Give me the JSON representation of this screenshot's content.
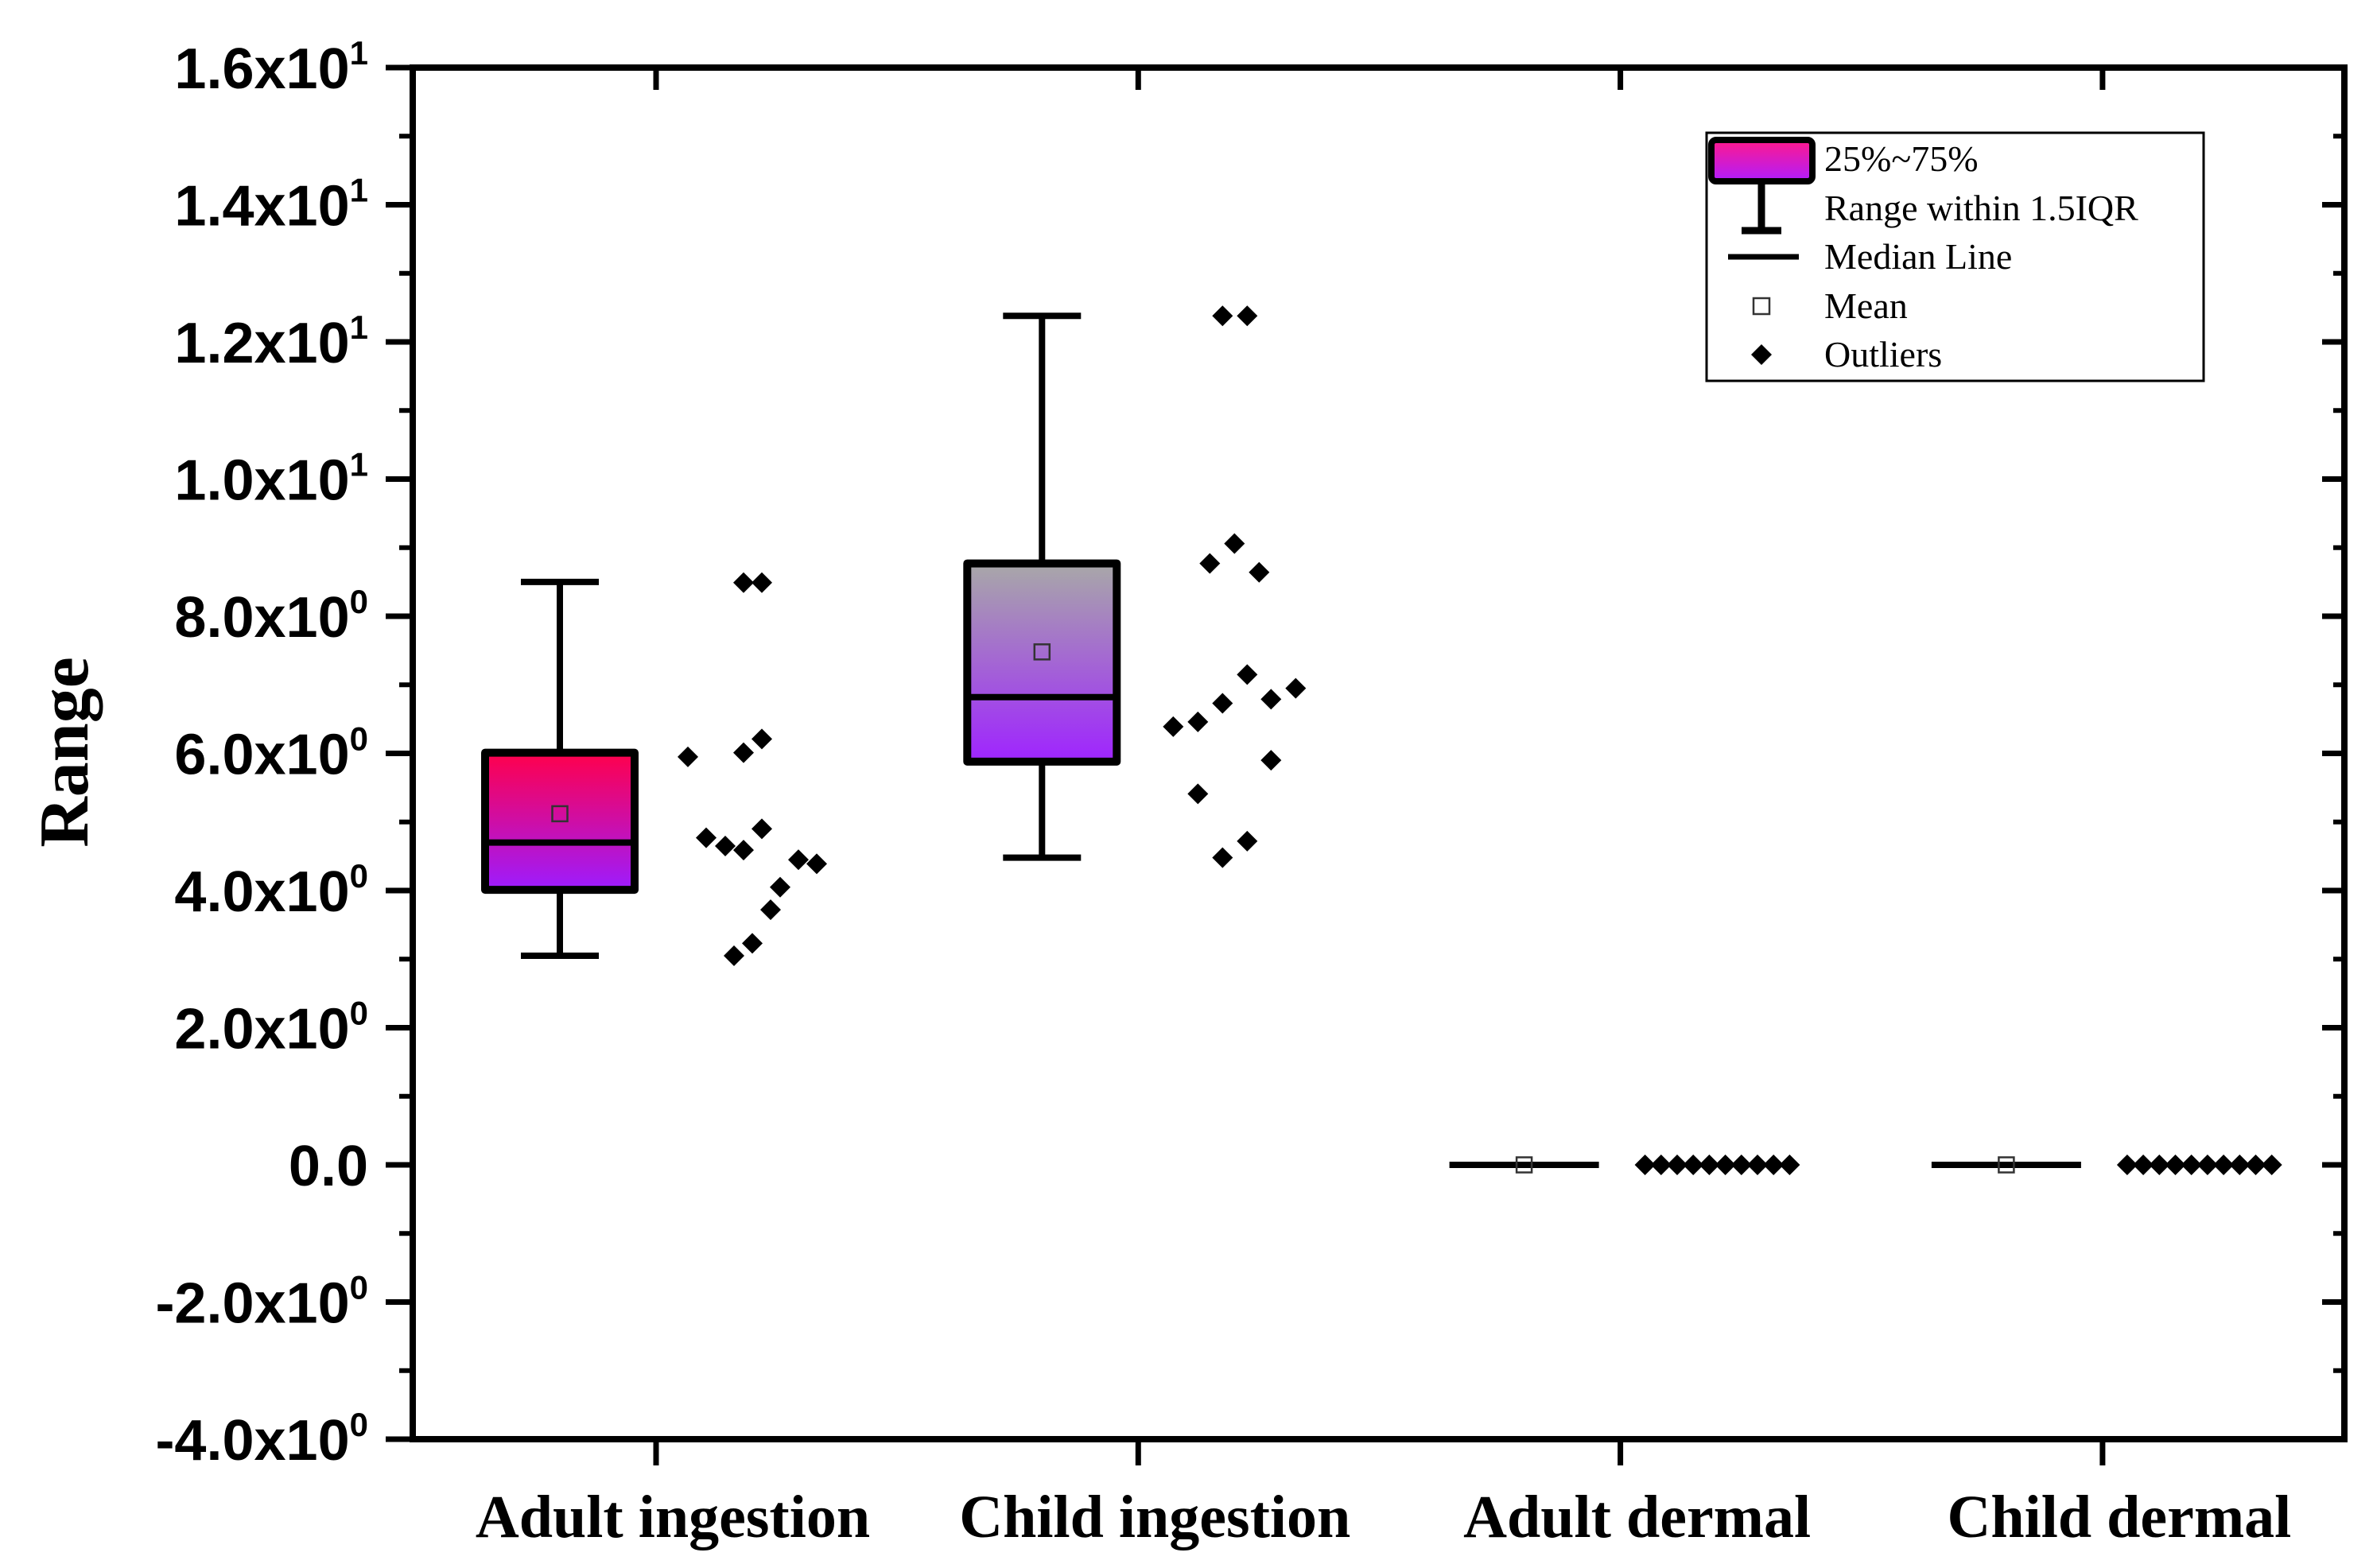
{
  "chart_data": {
    "type": "box",
    "title": "",
    "xlabel": "",
    "ylabel": "Range",
    "ylim": [
      -4,
      16
    ],
    "yticks": [
      {
        "value": 16,
        "mantissa": "1.6x10",
        "exp": "1"
      },
      {
        "value": 14,
        "mantissa": "1.4x10",
        "exp": "1"
      },
      {
        "value": 12,
        "mantissa": "1.2x10",
        "exp": "1"
      },
      {
        "value": 10,
        "mantissa": "1.0x10",
        "exp": "1"
      },
      {
        "value": 8,
        "mantissa": "8.0x10",
        "exp": "0"
      },
      {
        "value": 6,
        "mantissa": "6.0x10",
        "exp": "0"
      },
      {
        "value": 4,
        "mantissa": "4.0x10",
        "exp": "0"
      },
      {
        "value": 2,
        "mantissa": "2.0x10",
        "exp": "0"
      },
      {
        "value": 0,
        "mantissa": "0.0",
        "exp": ""
      },
      {
        "value": -2,
        "mantissa": "-2.0x10",
        "exp": "0"
      },
      {
        "value": -4,
        "mantissa": "-4.0x10",
        "exp": "0"
      }
    ],
    "categories": [
      "Adult ingestion",
      "Child ingestion",
      "Adult dermal",
      "Child dermal"
    ],
    "series": [
      {
        "name": "Adult ingestion",
        "q1": 4.01,
        "q3": 6.01,
        "median": 4.7,
        "mean": 5.12,
        "whisker_low": 3.05,
        "whisker_high": 8.5,
        "fill_top": "#ff004c",
        "fill_bottom": "#9d1cff",
        "points": [
          5.95,
          4.77,
          4.65,
          4.59,
          6.01,
          8.49,
          8.49,
          6.21,
          4.9,
          3.72,
          4.05,
          4.45,
          4.39,
          3.05,
          3.23
        ]
      },
      {
        "name": "Child ingestion",
        "q1": 5.88,
        "q3": 8.77,
        "median": 6.82,
        "mean": 7.48,
        "whisker_low": 4.48,
        "whisker_high": 12.38,
        "fill_top": "#a8a8a8",
        "fill_bottom": "#9f24ff",
        "points": [
          6.39,
          6.46,
          5.41,
          6.73,
          8.77,
          9.06,
          12.38,
          12.38,
          7.15,
          4.72,
          4.48,
          8.64,
          6.79,
          5.9,
          6.95
        ]
      },
      {
        "name": "Adult dermal",
        "q1": 0,
        "q3": 0,
        "median": 0,
        "mean": 0,
        "whisker_low": 0,
        "whisker_high": 0,
        "points": [
          0,
          0,
          0,
          0,
          0,
          0,
          0,
          0,
          0,
          0
        ]
      },
      {
        "name": "Child dermal",
        "q1": 0,
        "q3": 0,
        "median": 0,
        "mean": 0,
        "whisker_low": 0,
        "whisker_high": 0,
        "points": [
          0,
          0,
          0,
          0,
          0,
          0,
          0,
          0,
          0,
          0
        ]
      }
    ],
    "legend": {
      "position": "top-right",
      "box": "25%~75%",
      "whisker": "Range within 1.5IQR",
      "median": "Median Line",
      "mean": "Mean",
      "outliers": "Outliers"
    },
    "colors": {
      "axis": "#000000",
      "mean_marker": "#333333",
      "outlier": "#000000",
      "legend_top": "#ff1a8c",
      "legend_bottom": "#b01cff"
    }
  }
}
